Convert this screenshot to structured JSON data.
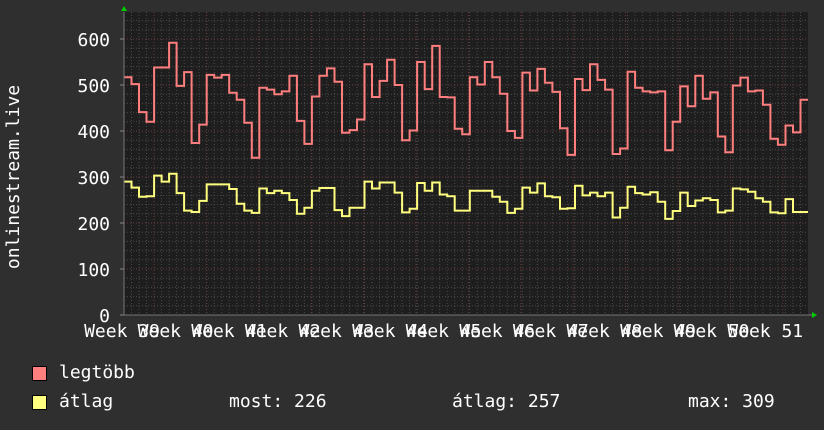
{
  "chart_data": {
    "type": "line",
    "step": true,
    "ylabel": "onlinestream.live",
    "ylim": [
      0,
      600
    ],
    "yticks": [
      "0",
      "100",
      "200",
      "300",
      "400",
      "500",
      "600"
    ],
    "xticks": [
      "Week 39",
      "Week 40",
      "Week 41",
      "Week 42",
      "Week 43",
      "Week 44",
      "Week 45",
      "Week 46",
      "Week 47",
      "Week 48",
      "Week 49",
      "Week 50",
      "Week 51"
    ],
    "grid": true,
    "legend_placement": "bottom-left",
    "series": [
      {
        "name": "legtöbb",
        "color": "#ff7f7f",
        "values": [
          517,
          502,
          441,
          420,
          538,
          538,
          592,
          498,
          528,
          374,
          414,
          522,
          516,
          522,
          483,
          468,
          418,
          342,
          494,
          490,
          480,
          486,
          520,
          422,
          372,
          475,
          520,
          536,
          507,
          396,
          402,
          425,
          545,
          474,
          509,
          555,
          500,
          380,
          401,
          550,
          491,
          585,
          474,
          473,
          405,
          393,
          517,
          501,
          550,
          517,
          481,
          400,
          385,
          527,
          488,
          535,
          505,
          485,
          406,
          348,
          513,
          489,
          545,
          511,
          490,
          350,
          362,
          529,
          494,
          486,
          484,
          486,
          358,
          420,
          497,
          454,
          520,
          470,
          484,
          388,
          354,
          499,
          516,
          486,
          488,
          457,
          383,
          370,
          412,
          397,
          468
        ]
      },
      {
        "name": "átlag",
        "color": "#ffff7f",
        "values": [
          290,
          277,
          257,
          258,
          303,
          290,
          307,
          265,
          227,
          224,
          248,
          284,
          284,
          284,
          274,
          242,
          227,
          222,
          275,
          265,
          270,
          265,
          250,
          220,
          233,
          270,
          276,
          276,
          228,
          215,
          233,
          233,
          290,
          275,
          288,
          288,
          266,
          223,
          231,
          287,
          270,
          288,
          262,
          258,
          227,
          227,
          270,
          270,
          270,
          257,
          246,
          222,
          231,
          277,
          266,
          286,
          258,
          256,
          231,
          232,
          281,
          260,
          266,
          258,
          266,
          212,
          233,
          279,
          265,
          262,
          267,
          246,
          209,
          226,
          266,
          237,
          249,
          254,
          250,
          223,
          227,
          275,
          273,
          268,
          254,
          246,
          223,
          221,
          252,
          224,
          224
        ]
      }
    ],
    "stats": {
      "current_label": "most: 226",
      "average_label": "átlag: 257",
      "max_label": "max: 309"
    }
  },
  "colors": {
    "background": "#2f2f2f",
    "plot_background": "#1e1e1e",
    "major_grid": "#6a3a3a",
    "minor_grid": "#4a4a4a",
    "axis_arrow": "#00cc00"
  }
}
